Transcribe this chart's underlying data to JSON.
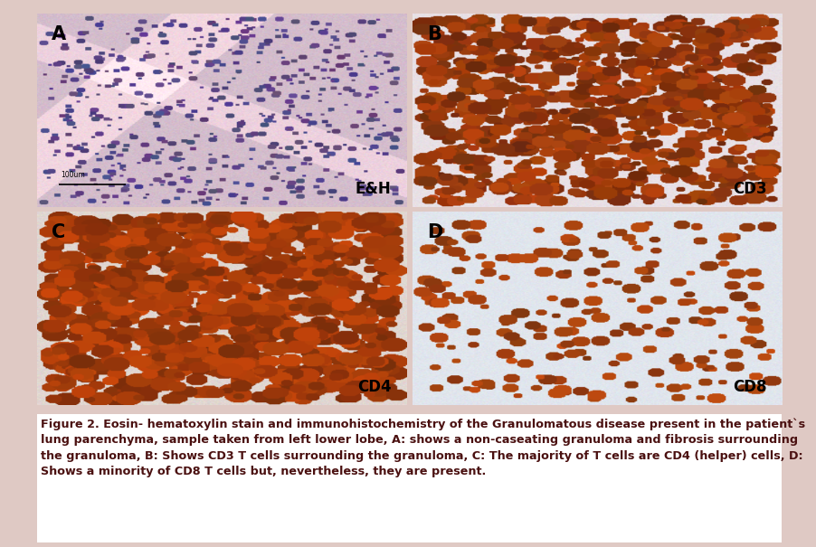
{
  "background_color": "#dfc9c4",
  "white_bg": "#ffffff",
  "fig_width": 9.03,
  "fig_height": 6.05,
  "labels": [
    "A",
    "B",
    "C",
    "D"
  ],
  "panel_labels": [
    "E&H",
    "CD3",
    "CD4",
    "CD8"
  ],
  "caption_text": "Figure 2. Eosin- hematoxylin stain and immunohistochemistry of the Granulomatous disease present in the patient`s lung parenchyma, sample taken from left lower lobe, A: shows a non-caseating granuloma and fibrosis surrounding the granuloma, B: Shows CD3 T cells surrounding the granuloma, C: The majority of T cells are CD4 (helper) cells, D: Shows a minority of CD8 T cells but, nevertheless, they are present.",
  "caption_fontsize": 9.2,
  "label_fontsize": 15,
  "panel_label_fontsize": 12,
  "scale_bar_text": "100um"
}
